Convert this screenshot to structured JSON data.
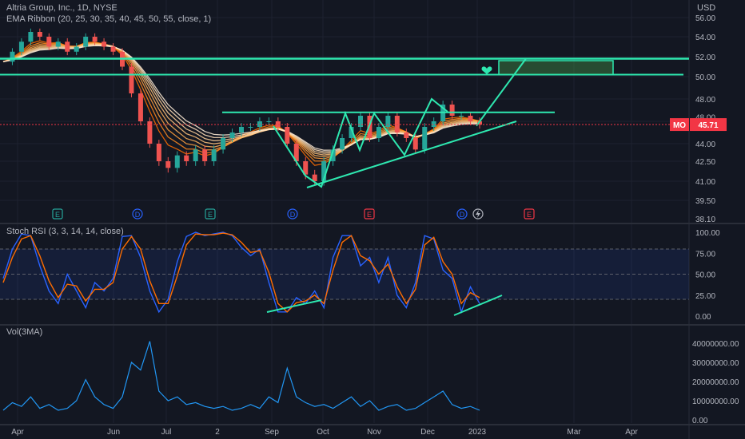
{
  "header": {
    "symbol_title": "Altria Group, Inc., 1D, NYSE",
    "indicator_ema": "EMA Ribbon (20, 25, 30, 35, 40, 45, 50, 55, close, 1)",
    "indicator_stoch": "Stoch RSI (3, 3, 14, 14, close)",
    "indicator_vol": "Vol(3MA)",
    "currency": "USD"
  },
  "price_badge": {
    "symbol": "MO",
    "value": "45.71",
    "color": "#f23645"
  },
  "colors": {
    "background": "#131722",
    "trendline": "#2ee8b0",
    "candle_up": "#26a69a",
    "candle_down": "#ef5350",
    "stoch_k": "#2962ff",
    "stoch_d": "#ff6d00",
    "volume": "#2196f3",
    "ribbon_fast": "#ff9800",
    "ribbon_slow": "#ffe0b2"
  },
  "x_axis": {
    "labels": [
      "Apr",
      "Jun",
      "Jul",
      "2",
      "Sep",
      "Oct",
      "Nov",
      "Dec",
      "2023",
      "Mar",
      "Apr"
    ]
  },
  "event_markers": [
    "E",
    "D",
    "E",
    "D",
    "E",
    "D",
    "E"
  ],
  "chart_data": [
    {
      "type": "line",
      "title": "Altria Group, Inc., 1D, NYSE",
      "xlabel": "",
      "ylabel": "USD",
      "ylim": [
        38.1,
        56.0
      ],
      "y_ticks": [
        "56.00",
        "54.00",
        "52.00",
        "50.00",
        "48.00",
        "44.00",
        "42.50",
        "41.00",
        "39.50",
        "38.10"
      ],
      "series": [
        {
          "name": "Close",
          "values": [
            51.5,
            52.5,
            53.5,
            54.5,
            54.0,
            53.0,
            53.5,
            52.5,
            53.0,
            54.0,
            53.5,
            53.0,
            52.5,
            51.0,
            48.5,
            46.0,
            44.0,
            42.5,
            42.0,
            43.0,
            42.5,
            43.5,
            42.5,
            43.5,
            44.5,
            45.0,
            45.5,
            45.5,
            46.0,
            46.0,
            45.5,
            44.0,
            42.5,
            41.5,
            41.0,
            42.5,
            43.5,
            44.5,
            45.5,
            46.5,
            44.5,
            45.5,
            46.5,
            45.0,
            44.5,
            43.5,
            45.5,
            46.0,
            47.5,
            46.5,
            46.5,
            46.0,
            45.7
          ]
        }
      ],
      "annotations": {
        "resistance_levels": [
          51.8,
          50.2,
          46.8
        ],
        "target_zone": [
          50.2,
          51.6
        ],
        "ascending_support": {
          "from": 40.5,
          "to": 46.0
        },
        "ribbon_periods": [
          20,
          25,
          30,
          35,
          40,
          45,
          50,
          55
        ]
      }
    },
    {
      "type": "line",
      "title": "Stoch RSI (3, 3, 14, 14, close)",
      "ylim": [
        0,
        100
      ],
      "y_ticks": [
        "100.00",
        "75.00",
        "50.00",
        "25.00",
        "0.00"
      ],
      "band": [
        20,
        80
      ],
      "series": [
        {
          "name": "K",
          "values": [
            45,
            80,
            98,
            96,
            60,
            30,
            15,
            50,
            30,
            10,
            40,
            30,
            45,
            95,
            96,
            70,
            30,
            5,
            20,
            65,
            95,
            100,
            96,
            98,
            100,
            96,
            82,
            72,
            80,
            40,
            5,
            5,
            22,
            15,
            30,
            10,
            70,
            96,
            96,
            60,
            70,
            40,
            70,
            25,
            10,
            40,
            96,
            92,
            55,
            45,
            5,
            35,
            15
          ]
        },
        {
          "name": "D",
          "values": [
            40,
            70,
            92,
            96,
            72,
            42,
            22,
            38,
            36,
            18,
            32,
            32,
            40,
            80,
            95,
            80,
            42,
            15,
            15,
            48,
            85,
            98,
            97,
            97,
            99,
            97,
            88,
            76,
            78,
            52,
            15,
            5,
            16,
            18,
            25,
            15,
            55,
            88,
            96,
            72,
            66,
            50,
            62,
            35,
            15,
            32,
            85,
            94,
            65,
            50,
            15,
            28,
            22
          ]
        }
      ],
      "annotations": {
        "divergence_lines": 3
      }
    },
    {
      "type": "area",
      "title": "Vol(3MA)",
      "ylim": [
        0,
        45000000
      ],
      "y_ticks": [
        "40000000.00",
        "30000000.00",
        "20000000.00",
        "10000000.00",
        "0.00"
      ],
      "series": [
        {
          "name": "Vol(3MA)",
          "values": [
            5000000,
            9000000,
            7000000,
            12000000,
            6000000,
            8000000,
            5000000,
            6000000,
            10000000,
            21000000,
            12000000,
            8000000,
            6000000,
            12000000,
            30000000,
            26000000,
            41000000,
            15000000,
            10000000,
            12000000,
            8000000,
            9000000,
            7000000,
            6000000,
            7000000,
            5000000,
            6000000,
            8000000,
            6000000,
            12000000,
            9000000,
            27000000,
            12000000,
            9000000,
            7000000,
            8000000,
            6000000,
            9000000,
            12000000,
            7000000,
            10000000,
            5000000,
            7000000,
            8000000,
            5000000,
            6000000,
            9000000,
            12000000,
            15000000,
            8000000,
            6000000,
            7000000,
            5000000
          ]
        }
      ]
    }
  ]
}
